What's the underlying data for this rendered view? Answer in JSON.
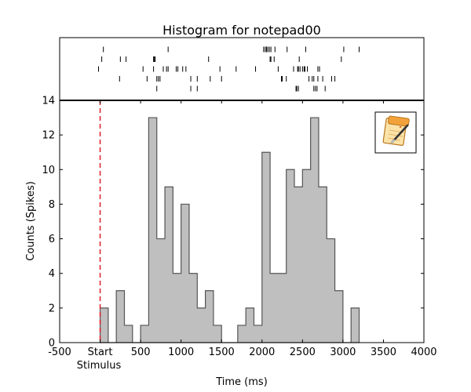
{
  "chart_data": {
    "type": "bar",
    "title": "Histogram for notepad00",
    "xlabel": "Time (ms)",
    "ylabel": "Counts (Spikes)",
    "xlim": [
      -500,
      4000
    ],
    "ylim": [
      0,
      14
    ],
    "bin_width": 100,
    "x_ticks": [
      {
        "value": -500,
        "label": "-500"
      },
      {
        "value": 0,
        "label": "Start"
      },
      {
        "value": 500,
        "label": "500"
      },
      {
        "value": 1000,
        "label": "1000"
      },
      {
        "value": 1500,
        "label": "1500"
      },
      {
        "value": 2000,
        "label": "2000"
      },
      {
        "value": 2500,
        "label": "2500"
      },
      {
        "value": 3000,
        "label": "3000"
      },
      {
        "value": 3500,
        "label": "3500"
      },
      {
        "value": 4000,
        "label": "4000"
      }
    ],
    "stimulus_label": "Stimulus",
    "y_ticks": [
      0,
      2,
      4,
      6,
      8,
      10,
      12,
      14
    ],
    "stimulus_time": 0,
    "bins": [
      {
        "start": 0,
        "count": 2
      },
      {
        "start": 100,
        "count": 0
      },
      {
        "start": 200,
        "count": 3
      },
      {
        "start": 300,
        "count": 1
      },
      {
        "start": 400,
        "count": 0
      },
      {
        "start": 500,
        "count": 1
      },
      {
        "start": 600,
        "count": 13
      },
      {
        "start": 700,
        "count": 6
      },
      {
        "start": 800,
        "count": 9
      },
      {
        "start": 900,
        "count": 4
      },
      {
        "start": 1000,
        "count": 8
      },
      {
        "start": 1100,
        "count": 4
      },
      {
        "start": 1200,
        "count": 2
      },
      {
        "start": 1300,
        "count": 3
      },
      {
        "start": 1400,
        "count": 1
      },
      {
        "start": 1500,
        "count": 0
      },
      {
        "start": 1600,
        "count": 0
      },
      {
        "start": 1700,
        "count": 1
      },
      {
        "start": 1800,
        "count": 2
      },
      {
        "start": 1900,
        "count": 1
      },
      {
        "start": 2000,
        "count": 11
      },
      {
        "start": 2100,
        "count": 4
      },
      {
        "start": 2200,
        "count": 4
      },
      {
        "start": 2300,
        "count": 10
      },
      {
        "start": 2400,
        "count": 9
      },
      {
        "start": 2500,
        "count": 10
      },
      {
        "start": 2600,
        "count": 13
      },
      {
        "start": 2700,
        "count": 9
      },
      {
        "start": 2800,
        "count": 6
      },
      {
        "start": 2900,
        "count": 3
      },
      {
        "start": 3000,
        "count": 0
      },
      {
        "start": 3100,
        "count": 2
      }
    ],
    "raster": {
      "trials": [
        [
          40,
          840,
          2020,
          2040,
          2055,
          2070,
          2090,
          2110,
          2160,
          2310,
          2540,
          3010,
          3200
        ],
        [
          20,
          250,
          320,
          660,
          670,
          680,
          1340,
          2100,
          2110,
          2150,
          2460,
          2980
        ],
        [
          -20,
          530,
          660,
          780,
          820,
          840,
          940,
          960,
          1020,
          1060,
          1480,
          1680,
          1920,
          2200,
          2390,
          2440,
          2450,
          2470,
          2500,
          2520,
          2530,
          2560,
          2690,
          2710
        ],
        [
          240,
          580,
          700,
          720,
          740,
          1120,
          1200,
          1360,
          1500,
          2240,
          2250,
          2300,
          2580,
          2620,
          2640,
          2690,
          2750,
          2860,
          2900
        ],
        [
          700,
          1120,
          1200,
          2420,
          2430,
          2450,
          2640,
          2660,
          2680,
          2780
        ]
      ]
    },
    "bar_color": "#bfbfbf",
    "edge_color": "#555555",
    "stimulus_color": "#e0202a",
    "grid": false,
    "legend": "none"
  },
  "icon": {
    "name": "notepad-icon"
  }
}
